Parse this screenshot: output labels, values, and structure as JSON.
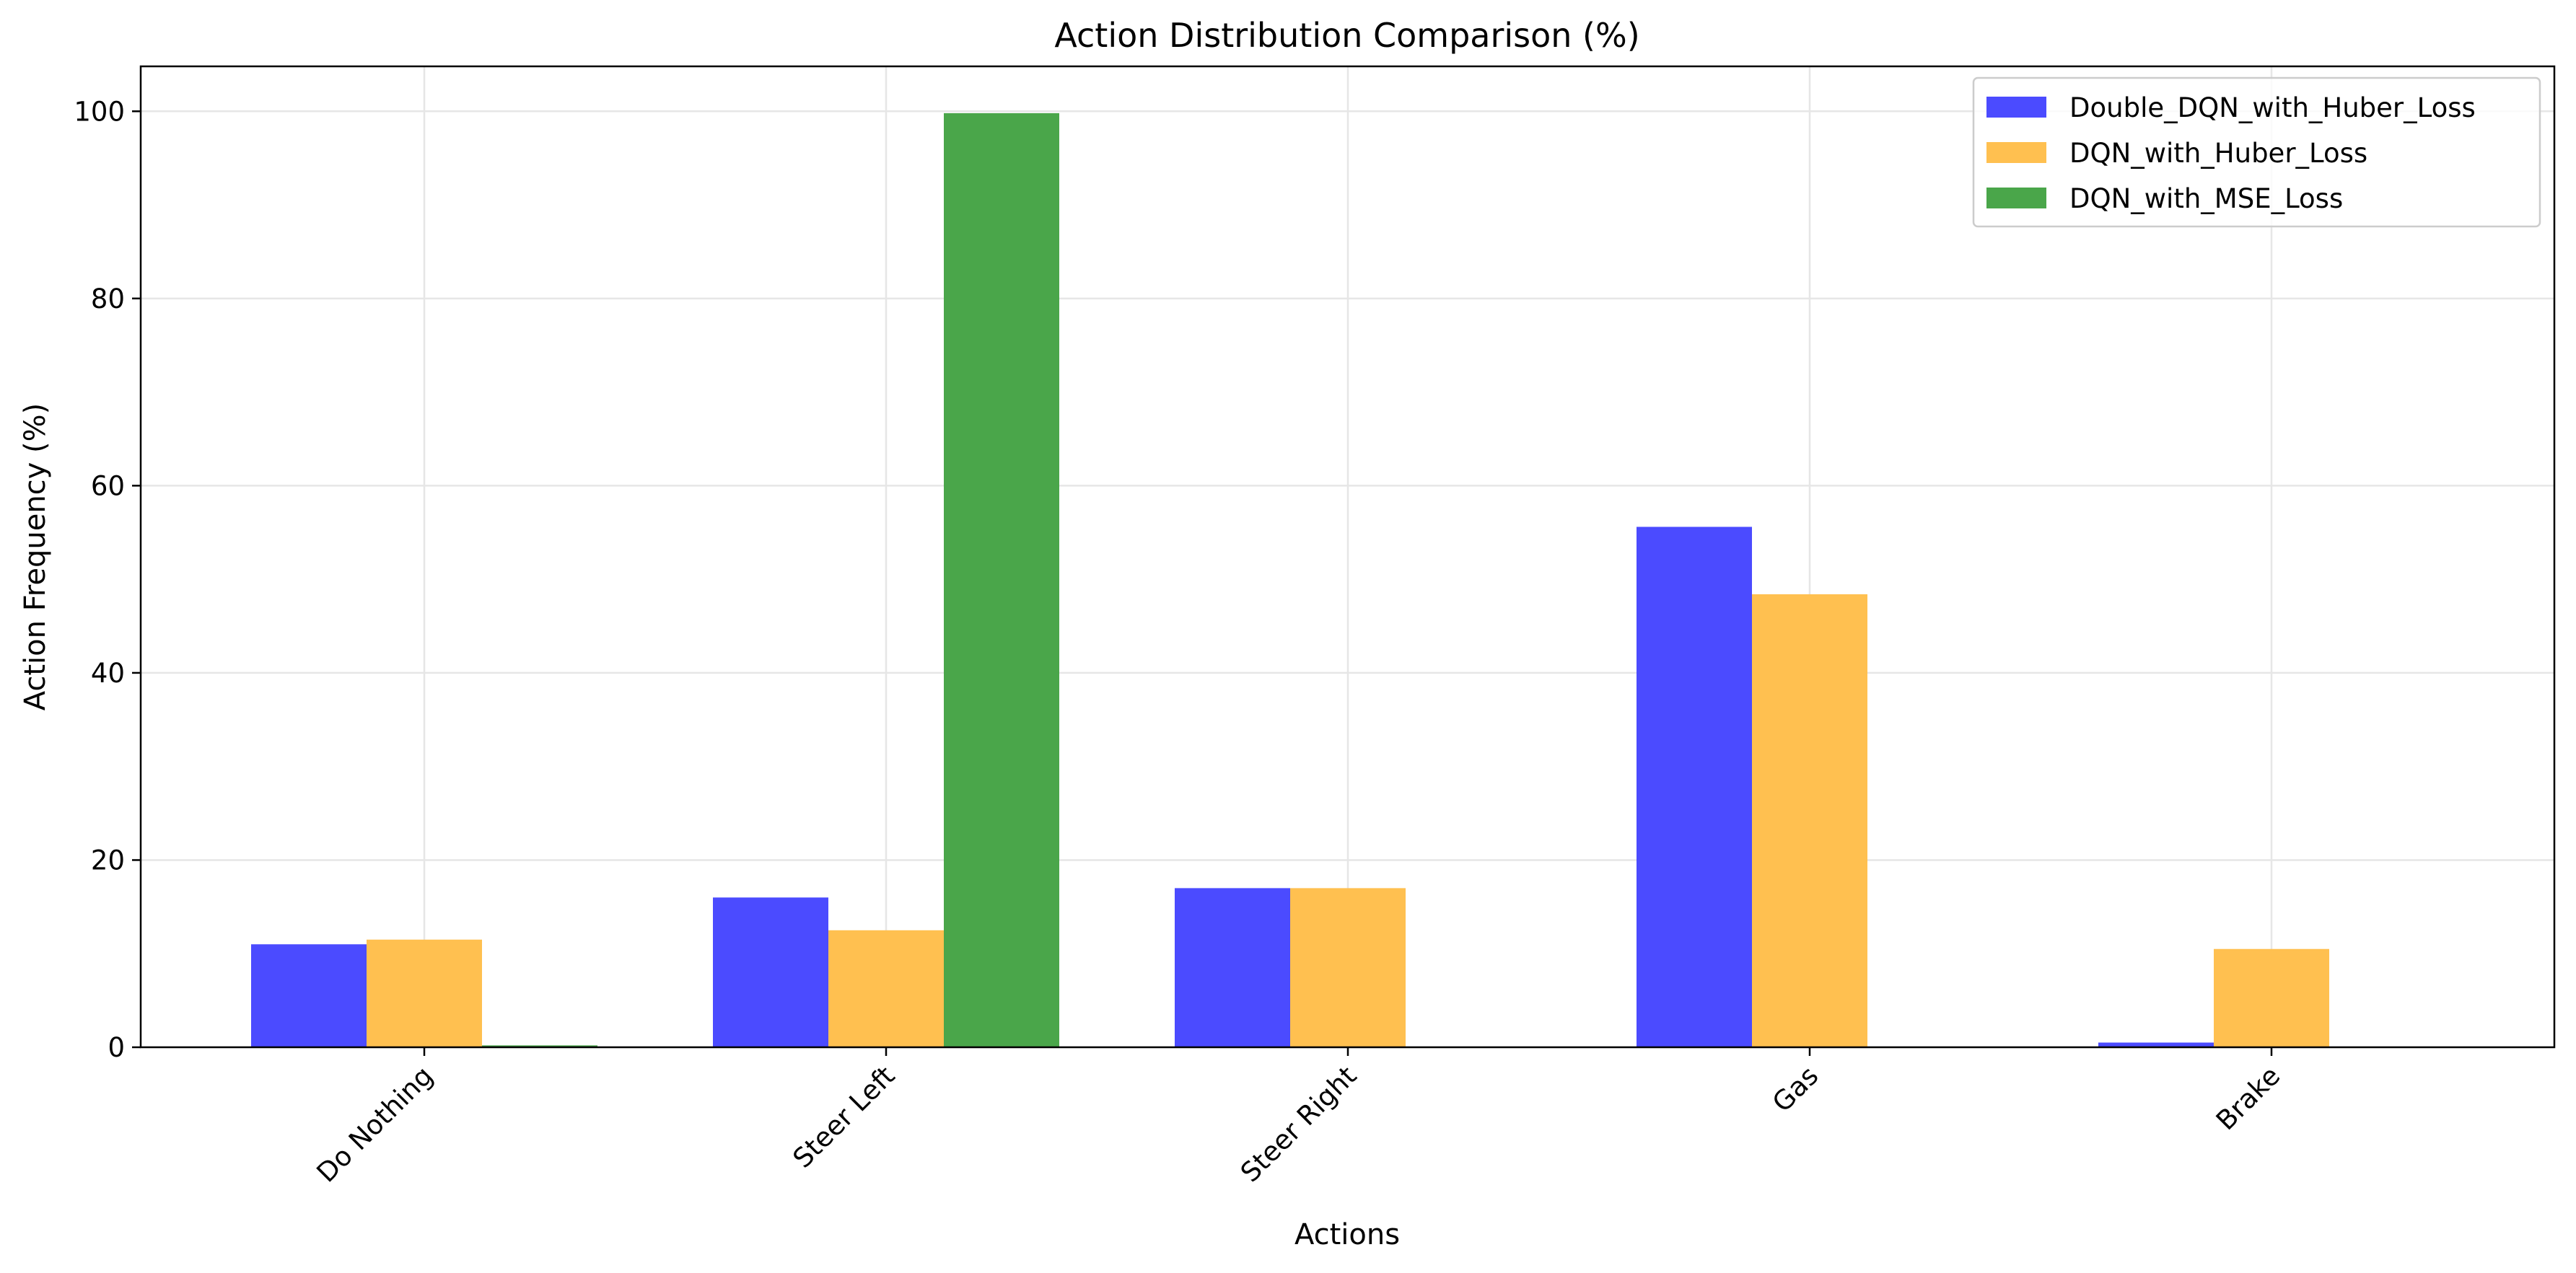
{
  "chart_data": {
    "type": "bar",
    "title": "Action Distribution Comparison (%)",
    "xlabel": "Actions",
    "ylabel": "Action Frequency (%)",
    "categories": [
      "Do Nothing",
      "Steer Left",
      "Steer Right",
      "Gas",
      "Brake"
    ],
    "series": [
      {
        "name": "Double_DQN_with_Huber_Loss",
        "color": "#4B4BFF",
        "values": [
          11.0,
          16.0,
          17.0,
          55.6,
          0.5
        ]
      },
      {
        "name": "DQN_with_Huber_Loss",
        "color": "#FFC050",
        "values": [
          11.5,
          12.5,
          17.0,
          48.4,
          10.5
        ]
      },
      {
        "name": "DQN_with_MSE_Loss",
        "color": "#4AA64A",
        "values": [
          0.2,
          99.8,
          0.0,
          0.0,
          0.0
        ]
      }
    ],
    "ylim": [
      0,
      104.8
    ],
    "yticks": [
      0,
      20,
      40,
      60,
      80,
      100
    ],
    "grid": true,
    "legend_position": "top-right"
  }
}
